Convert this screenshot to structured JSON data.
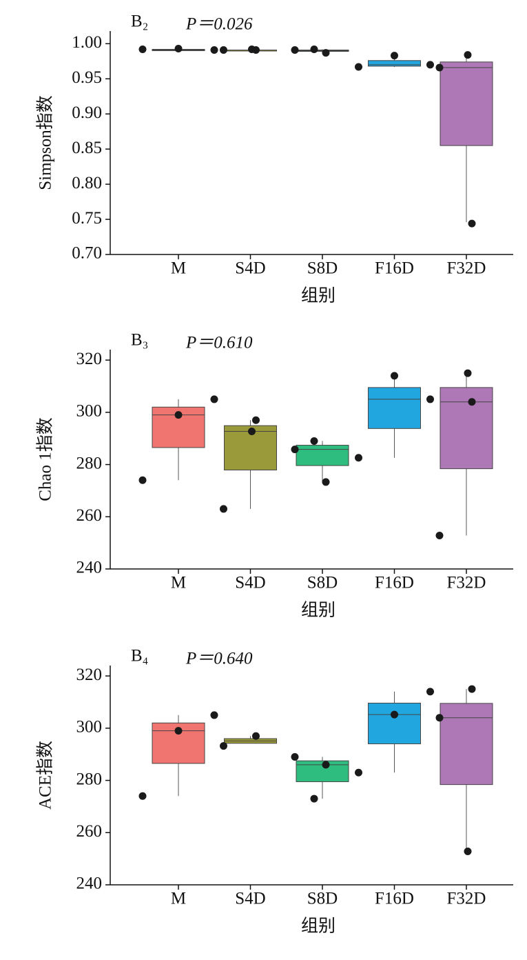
{
  "chart_data": [
    {
      "type": "box",
      "panel": "B₂",
      "annotation": "P＝0.026",
      "ylabel": "Simpson指数",
      "xlabel": "组别",
      "categories": [
        "M",
        "S4D",
        "S8D",
        "F16D",
        "F32D"
      ],
      "colors": [
        "#f07470",
        "#9a9a3a",
        "#2ebd7e",
        "#22a6e0",
        "#ad78b5"
      ],
      "boxes": [
        {
          "q1": 0.99,
          "median": 0.991,
          "q3": 0.992,
          "whisker_low": 0.99,
          "whisker_high": 0.993,
          "points": [
            0.992,
            0.993,
            0.991
          ]
        },
        {
          "q1": 0.99,
          "median": 0.991,
          "q3": 0.991,
          "whisker_low": 0.99,
          "whisker_high": 0.992,
          "points": [
            0.991,
            0.991,
            0.992
          ]
        },
        {
          "q1": 0.989,
          "median": 0.99,
          "q3": 0.991,
          "whisker_low": 0.987,
          "whisker_high": 0.992,
          "points": [
            0.992,
            0.991,
            0.987
          ]
        },
        {
          "q1": 0.968,
          "median": 0.97,
          "q3": 0.976,
          "whisker_low": 0.967,
          "whisker_high": 0.983,
          "points": [
            0.967,
            0.983,
            0.97
          ]
        },
        {
          "q1": 0.855,
          "median": 0.966,
          "q3": 0.974,
          "whisker_low": 0.746,
          "whisker_high": 0.983,
          "points": [
            0.966,
            0.744,
            0.984
          ]
        }
      ],
      "ylim": [
        0.7,
        1.018
      ],
      "yticks": [
        {
          "value": 0.7,
          "label": "0.70"
        },
        {
          "value": 0.75,
          "label": "0.75"
        },
        {
          "value": 0.8,
          "label": "0.80"
        },
        {
          "value": 0.85,
          "label": "0.85"
        },
        {
          "value": 0.9,
          "label": "0.90"
        },
        {
          "value": 0.95,
          "label": "0.95"
        },
        {
          "value": 1.0,
          "label": "1.00"
        }
      ]
    },
    {
      "type": "box",
      "panel": "B₃",
      "annotation": "P＝0.610",
      "ylabel": "Chao 1指数",
      "xlabel": "组别",
      "categories": [
        "M",
        "S4D",
        "S8D",
        "F16D",
        "F32D"
      ],
      "colors": [
        "#f07470",
        "#9a9a3a",
        "#2ebd7e",
        "#22a6e0",
        "#ad78b5"
      ],
      "boxes": [
        {
          "q1": 286.5,
          "median": 299,
          "q3": 302,
          "whisker_low": 274,
          "whisker_high": 305,
          "points": [
            274,
            299,
            305
          ]
        },
        {
          "q1": 277.9,
          "median": 292.7,
          "q3": 294.9,
          "whisker_low": 263,
          "whisker_high": 297,
          "points": [
            263,
            297,
            292.7
          ]
        },
        {
          "q1": 279.6,
          "median": 285.8,
          "q3": 287.4,
          "whisker_low": 273.3,
          "whisker_high": 289,
          "points": [
            289,
            285.8,
            273.3
          ]
        },
        {
          "q1": 293.8,
          "median": 305,
          "q3": 309.5,
          "whisker_low": 282.6,
          "whisker_high": 314,
          "points": [
            282.6,
            314,
            305
          ]
        },
        {
          "q1": 278.4,
          "median": 304,
          "q3": 309.5,
          "whisker_low": 252.8,
          "whisker_high": 315,
          "points": [
            252.8,
            304,
            315
          ]
        }
      ],
      "ylim": [
        240,
        324
      ],
      "yticks": [
        240,
        260,
        280,
        300,
        320
      ]
    },
    {
      "type": "box",
      "panel": "B₄",
      "annotation": "P＝0.640",
      "ylabel": "ACE指数",
      "xlabel": "组别",
      "categories": [
        "M",
        "S4D",
        "S8D",
        "F16D",
        "F32D"
      ],
      "colors": [
        "#f07470",
        "#9a9a3a",
        "#2ebd7e",
        "#22a6e0",
        "#ad78b5"
      ],
      "boxes": [
        {
          "q1": 286.5,
          "median": 299,
          "q3": 302,
          "whisker_low": 274,
          "whisker_high": 305,
          "points": [
            274,
            299,
            305
          ]
        },
        {
          "q1": 294.2,
          "median": 295.1,
          "q3": 296,
          "whisker_low": 294.2,
          "whisker_high": 297,
          "points": [
            293.2,
            297
          ]
        },
        {
          "q1": 279.5,
          "median": 286,
          "q3": 287.5,
          "whisker_low": 273,
          "whisker_high": 289,
          "points": [
            273,
            289,
            286
          ]
        },
        {
          "q1": 294,
          "median": 305.2,
          "q3": 309.6,
          "whisker_low": 283,
          "whisker_high": 314,
          "points": [
            283,
            305.2,
            314
          ]
        },
        {
          "q1": 278.4,
          "median": 304,
          "q3": 309.5,
          "whisker_low": 252.8,
          "whisker_high": 315,
          "points": [
            304,
            315,
            252.8
          ]
        }
      ],
      "ylim": [
        240,
        324
      ],
      "yticks": [
        240,
        260,
        280,
        300,
        320
      ]
    }
  ]
}
